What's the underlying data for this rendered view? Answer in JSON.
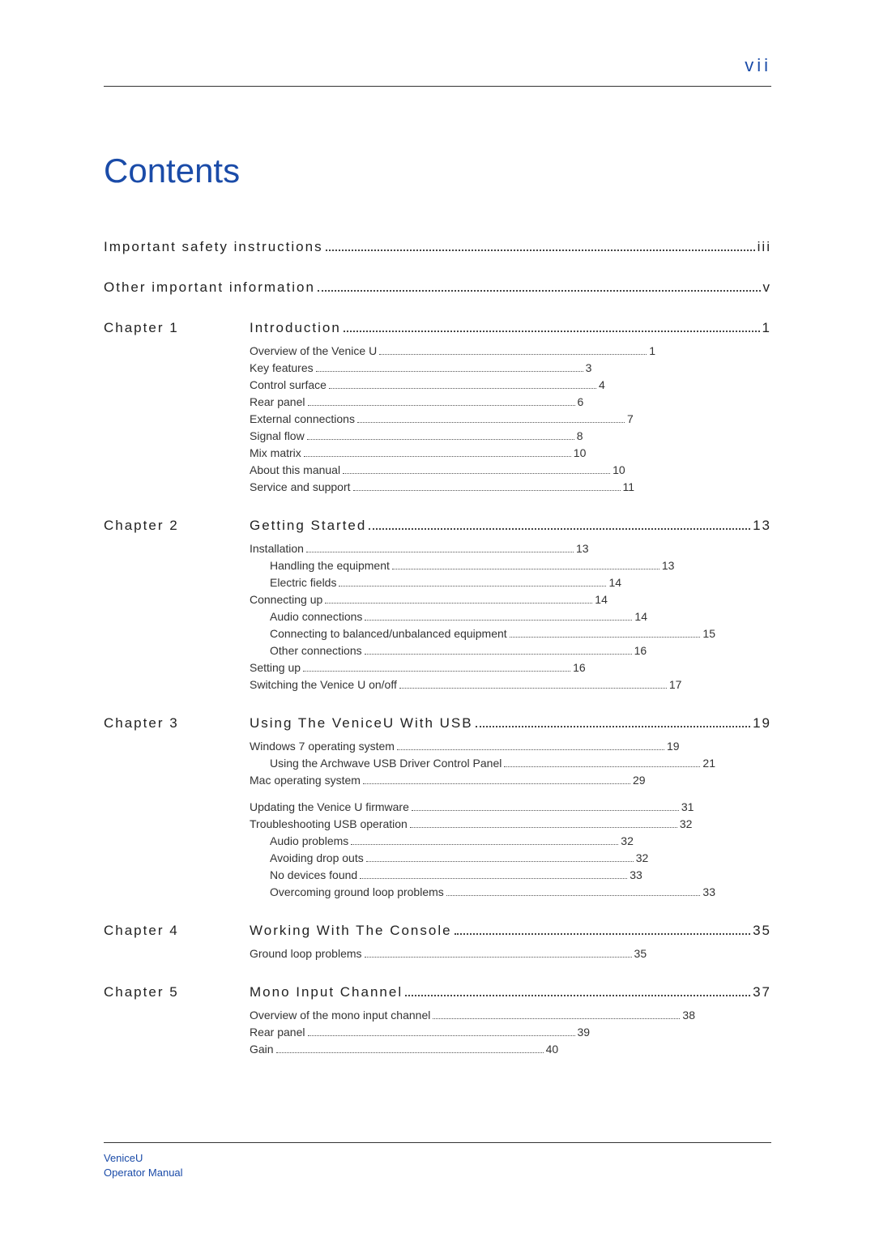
{
  "page_number": "vii",
  "title": "Contents",
  "footer": {
    "line1": "VeniceU",
    "line2": "Operator Manual"
  },
  "colors": {
    "accent": "#1a4ba8",
    "text": "#222222",
    "rule": "#333333"
  },
  "front_matter": [
    {
      "label": "Important safety instructions",
      "page": "iii"
    },
    {
      "label": "Other important information",
      "page": "v"
    }
  ],
  "chapters": [
    {
      "chapter": "Chapter 1",
      "title": "Introduction",
      "page": "1",
      "subs": [
        {
          "t": "Overview of the Venice   U",
          "p": "1",
          "i": 0
        },
        {
          "t": "Key features",
          "p": "3",
          "i": 0
        },
        {
          "t": "Control surface",
          "p": "4",
          "i": 0
        },
        {
          "t": "Rear panel",
          "p": "6",
          "i": 0
        },
        {
          "t": "External connections",
          "p": "7",
          "i": 0
        },
        {
          "t": "Signal flow",
          "p": "8",
          "i": 0
        },
        {
          "t": "Mix matrix",
          "p": "10",
          "i": 0
        },
        {
          "t": "About this manual",
          "p": "10",
          "i": 0
        },
        {
          "t": "Service and support",
          "p": "11",
          "i": 0
        }
      ]
    },
    {
      "chapter": "Chapter 2",
      "title": "Getting Started",
      "page": "13",
      "subs": [
        {
          "t": "Installation",
          "p": "13",
          "i": 0
        },
        {
          "t": "Handling the equipment",
          "p": "13",
          "i": 1
        },
        {
          "t": "Electric fields",
          "p": "14",
          "i": 1
        },
        {
          "t": "Connecting up",
          "p": "14",
          "i": 0
        },
        {
          "t": "Audio connections",
          "p": "14",
          "i": 1
        },
        {
          "t": "Connecting to balanced/unbalanced equipment",
          "p": "15",
          "i": 1
        },
        {
          "t": "Other connections",
          "p": "16",
          "i": 1
        },
        {
          "t": "Setting up",
          "p": "16",
          "i": 0
        },
        {
          "t": "Switching the Venice   U on/off",
          "p": "17",
          "i": 0
        }
      ]
    },
    {
      "chapter": "Chapter 3",
      "title": "Using The VeniceU With USB",
      "page": "19",
      "subs": [
        {
          "t": "Windows 7 operating system",
          "p": "19",
          "i": 0
        },
        {
          "t": "Using the Archwave USB Driver Control Panel",
          "p": "21",
          "i": 1
        },
        {
          "t": "Mac operating system",
          "p": "29",
          "i": 0
        },
        {
          "t": "",
          "p": "",
          "i": -1
        },
        {
          "t": "Updating the Venice   U firmware",
          "p": "31",
          "i": 0
        },
        {
          "t": "Troubleshooting USB operation",
          "p": "32",
          "i": 0
        },
        {
          "t": "Audio problems",
          "p": "32",
          "i": 1
        },
        {
          "t": "Avoiding drop outs",
          "p": "32",
          "i": 1
        },
        {
          "t": "No devices found",
          "p": "33",
          "i": 1
        },
        {
          "t": "Overcoming ground loop problems",
          "p": "33",
          "i": 1
        }
      ]
    },
    {
      "chapter": "Chapter 4",
      "title": "Working With The Console",
      "page": "35",
      "subs": [
        {
          "t": "Ground loop problems",
          "p": "35",
          "i": 0
        }
      ]
    },
    {
      "chapter": "Chapter 5",
      "title": "Mono Input Channel",
      "page": "37",
      "subs": [
        {
          "t": "Overview of the mono input channel",
          "p": "38",
          "i": 0
        },
        {
          "t": "Rear panel",
          "p": "39",
          "i": 0
        },
        {
          "t": "Gain",
          "p": "40",
          "i": 0
        }
      ]
    }
  ]
}
